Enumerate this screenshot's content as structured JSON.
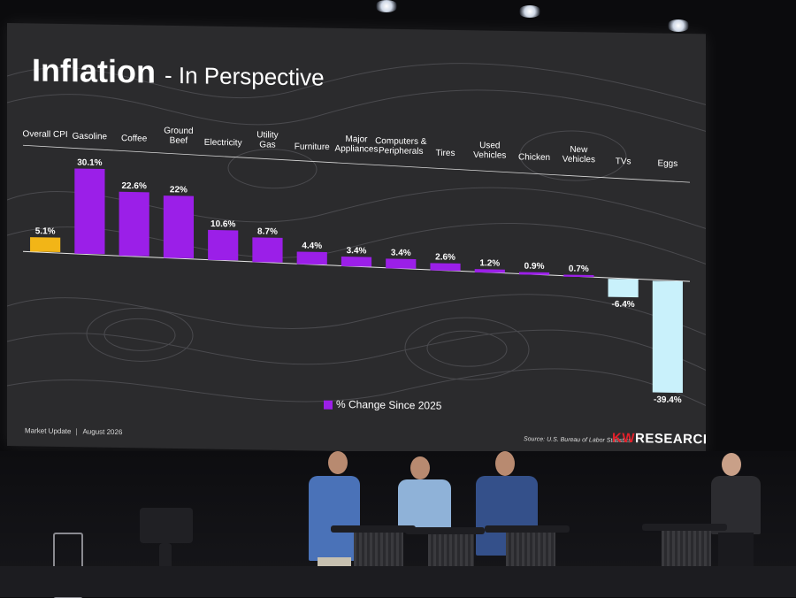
{
  "slide": {
    "title": "Inflation",
    "subtitle": "- In Perspective",
    "footer_left": "Market Update",
    "footer_date": "August 2026",
    "source": "Source: U.S. Bureau of Labor Statistics",
    "brand_kw": "KW",
    "brand_rest": "RESEARCH"
  },
  "chart_data": {
    "type": "bar",
    "categories": [
      [
        "Overall CPI"
      ],
      [
        "Gasoline"
      ],
      [
        "Coffee"
      ],
      [
        "Ground",
        "Beef"
      ],
      [
        "Electricity"
      ],
      [
        "Utility",
        "Gas"
      ],
      [
        "Furniture"
      ],
      [
        "Major",
        "Appliances"
      ],
      [
        "Computers &",
        "Peripherals"
      ],
      [
        "Tires"
      ],
      [
        "Used",
        "Vehicles"
      ],
      [
        "Chicken"
      ],
      [
        "New",
        "Vehicles"
      ],
      [
        "TVs"
      ],
      [
        "Eggs"
      ]
    ],
    "values": [
      5.1,
      30.1,
      22.6,
      22,
      10.6,
      8.7,
      4.4,
      3.4,
      3.4,
      2.6,
      1.2,
      0.9,
      0.7,
      -6.4,
      -39.4
    ],
    "value_labels": [
      "5.1%",
      "30.1%",
      "22.6%",
      "22%",
      "10.6%",
      "8.7%",
      "4.4%",
      "3.4%",
      "3.4%",
      "2.6%",
      "1.2%",
      "0.9%",
      "0.7%",
      "-6.4%",
      "-39.4%"
    ],
    "colors": {
      "highlight": "#f2b517",
      "positive": "#9b1fe8",
      "negative": "#c9f1fb"
    },
    "highlight_index": 0,
    "legend": "% Change Since 2025",
    "legend_placement": "bottom-center",
    "grid": false
  }
}
